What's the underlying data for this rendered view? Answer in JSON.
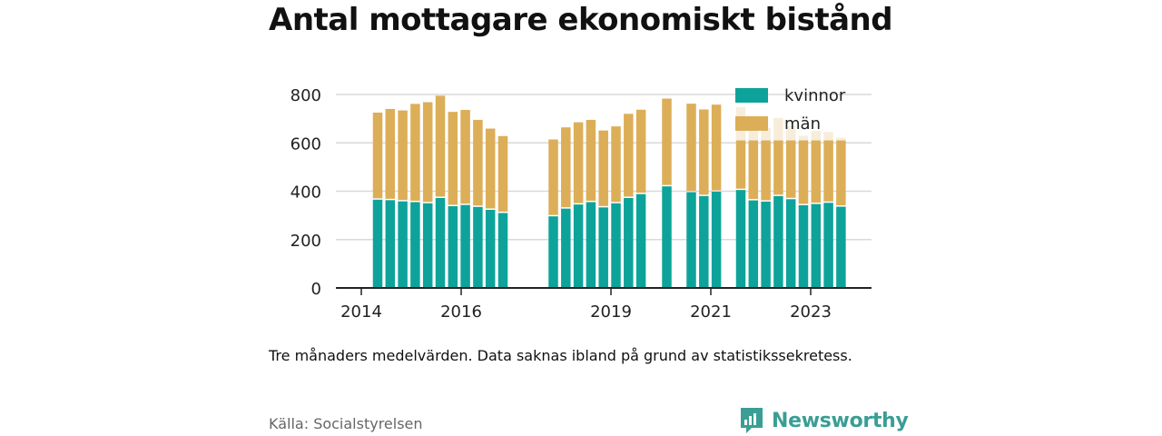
{
  "chart_data": {
    "type": "bar",
    "stacked": true,
    "title": "Antal mottagare ekonomiskt bistånd",
    "note": "Tre månaders medelvärden. Data saknas ibland på grund av statistikssekretess.",
    "source": "Källa: Socialstyrelsen",
    "x_ticks": [
      "2014",
      "2016",
      "2019",
      "2021",
      "2023"
    ],
    "y_ticks": [
      "0",
      "200",
      "400",
      "600",
      "800"
    ],
    "ylim": [
      0,
      800
    ],
    "grid": "horizontal",
    "legend_position": "top-right",
    "colors": {
      "kvinnor": "#0ea39a",
      "man": "#dcae58",
      "man_faded": "#f7eddb"
    },
    "series": [
      {
        "name": "kvinnor",
        "values": [
          365,
          363,
          358,
          355,
          350,
          372,
          338,
          343,
          335,
          323,
          310,
          296,
          328,
          345,
          355,
          333,
          350,
          372,
          388,
          420,
          396,
          380,
          398,
          405,
          362,
          357,
          380,
          367,
          342,
          347,
          352,
          336
        ]
      },
      {
        "name": "män",
        "values": [
          360,
          377,
          376,
          406,
          418,
          423,
          390,
          393,
          360,
          336,
          318,
          318,
          336,
          340,
          340,
          318,
          318,
          348,
          349,
          363,
          366,
          358,
          360,
          0,
          0,
          0,
          0,
          0,
          0,
          0,
          0,
          0
        ]
      }
    ],
    "faded_man_values": [
      0,
      0,
      0,
      0,
      0,
      0,
      0,
      0,
      0,
      0,
      0,
      0,
      0,
      0,
      0,
      0,
      0,
      0,
      0,
      0,
      0,
      0,
      0,
      343,
      293,
      305,
      323,
      302,
      287,
      302,
      293,
      285
    ],
    "bars_layout_hint": "32 quarterly bars with gaps where data is missing"
  },
  "brand": {
    "name": "Newsworthy",
    "icon": "bar-chart-bubble-icon"
  }
}
